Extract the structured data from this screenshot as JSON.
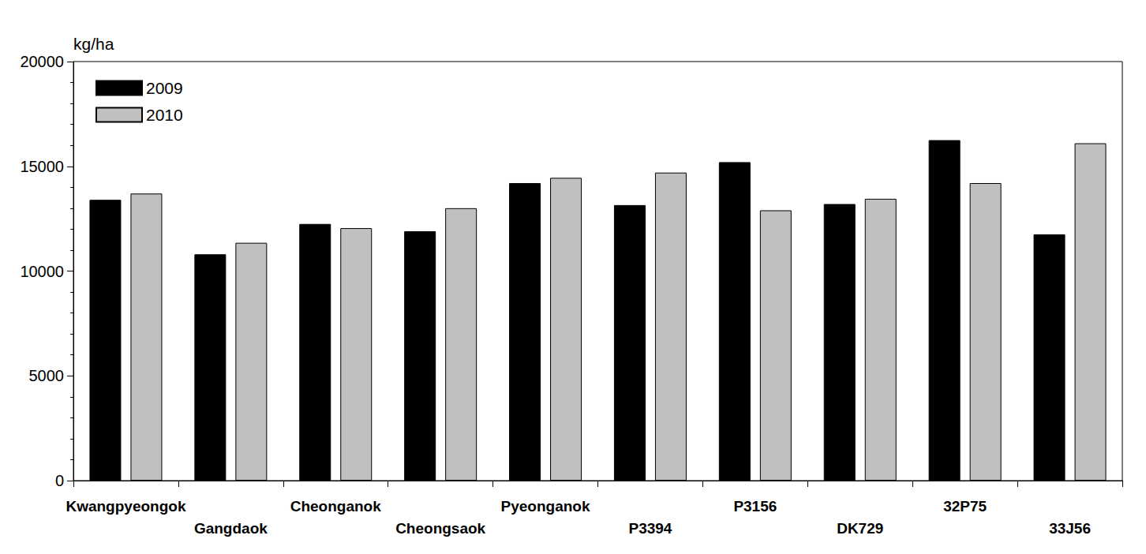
{
  "chart_data": {
    "type": "bar",
    "y_label": "kg/ha",
    "categories": [
      "Kwangpyeongok",
      "Gangdaok",
      "Cheonganok",
      "Cheongsaok",
      "Pyeonganok",
      "P3394",
      "P3156",
      "DK729",
      "32P75",
      "33J56"
    ],
    "series": [
      {
        "name": "2009",
        "color": "#000000",
        "values": [
          13400,
          10800,
          12250,
          11900,
          14200,
          13150,
          15200,
          13200,
          16250,
          11750
        ]
      },
      {
        "name": "2010",
        "color": "#c0c0c0",
        "values": [
          13700,
          11350,
          12050,
          13000,
          14450,
          14700,
          12900,
          13450,
          14200,
          16100
        ]
      }
    ],
    "ylim": [
      0,
      20000
    ],
    "yticks": [
      0,
      5000,
      10000,
      15000,
      20000
    ],
    "grid": false,
    "legend": "upper left"
  }
}
